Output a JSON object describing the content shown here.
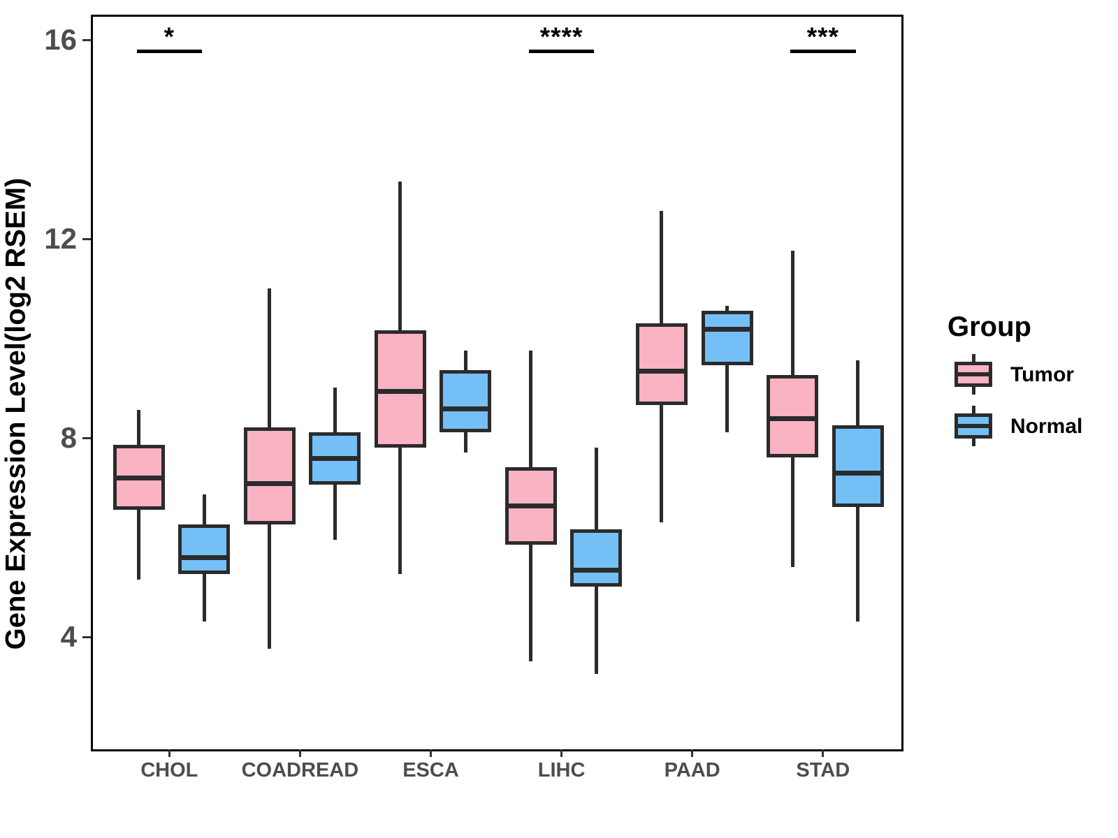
{
  "y_axis": {
    "title": "Gene Expression Level(log2 RSEM)",
    "tick_labels": [
      "16",
      "12",
      "8",
      "4"
    ],
    "tick_values": [
      16,
      12,
      8,
      4
    ]
  },
  "x_axis": {
    "tick_labels": [
      "CHOL",
      "COADREAD",
      "ESCA",
      "LIHC",
      "PAAD",
      "STAD"
    ]
  },
  "legend": {
    "title": "Group",
    "entries": [
      {
        "label": "Tumor",
        "color": "#FAB3C3"
      },
      {
        "label": "Normal",
        "color": "#75BFF7"
      }
    ]
  },
  "chart_data": {
    "type": "boxplot",
    "title": "",
    "xlabel": "",
    "ylabel": "Gene Expression Level(log2 RSEM)",
    "categories": [
      "CHOL",
      "COADREAD",
      "ESCA",
      "LIHC",
      "PAAD",
      "STAD"
    ],
    "yticks": [
      4,
      8,
      12,
      16
    ],
    "ylim": [
      1.8,
      16.5
    ],
    "grid": false,
    "legend_position": "right",
    "group_colors": {
      "Tumor": "#FAB3C3",
      "Normal": "#75BFF7"
    },
    "stroke_color": "#2b2b2b",
    "series": [
      {
        "name": "Tumor",
        "color": "#FAB3C3",
        "boxes": [
          {
            "category": "CHOL",
            "whisker_low": 5.2,
            "q1": 6.6,
            "median": 7.3,
            "q3": 7.9,
            "whisker_high": 8.6
          },
          {
            "category": "COADREAD",
            "whisker_low": 3.8,
            "q1": 6.3,
            "median": 7.2,
            "q3": 8.25,
            "whisker_high": 11.05
          },
          {
            "category": "ESCA",
            "whisker_low": 5.3,
            "q1": 7.85,
            "median": 9.05,
            "q3": 10.2,
            "whisker_high": 13.2
          },
          {
            "category": "LIHC",
            "whisker_low": 3.55,
            "q1": 5.9,
            "median": 6.75,
            "q3": 7.45,
            "whisker_high": 9.8
          },
          {
            "category": "PAAD",
            "whisker_low": 6.35,
            "q1": 8.7,
            "median": 9.45,
            "q3": 10.35,
            "whisker_high": 12.6
          },
          {
            "category": "STAD",
            "whisker_low": 5.45,
            "q1": 7.65,
            "median": 8.5,
            "q3": 9.3,
            "whisker_high": 11.8
          }
        ]
      },
      {
        "name": "Normal",
        "color": "#75BFF7",
        "boxes": [
          {
            "category": "CHOL",
            "whisker_low": 4.35,
            "q1": 5.3,
            "median": 5.7,
            "q3": 6.3,
            "whisker_high": 6.9
          },
          {
            "category": "COADREAD",
            "whisker_low": 6.0,
            "q1": 7.1,
            "median": 7.7,
            "q3": 8.15,
            "whisker_high": 9.05
          },
          {
            "category": "ESCA",
            "whisker_low": 7.75,
            "q1": 8.15,
            "median": 8.7,
            "q3": 9.4,
            "whisker_high": 9.8
          },
          {
            "category": "LIHC",
            "whisker_low": 3.3,
            "q1": 5.05,
            "median": 5.45,
            "q3": 6.2,
            "whisker_high": 7.85
          },
          {
            "category": "PAAD",
            "whisker_low": 8.15,
            "q1": 9.5,
            "median": 10.3,
            "q3": 10.6,
            "whisker_high": 10.7
          },
          {
            "category": "STAD",
            "whisker_low": 4.35,
            "q1": 6.65,
            "median": 7.4,
            "q3": 8.3,
            "whisker_high": 9.6
          }
        ]
      }
    ],
    "significance": [
      {
        "category": "CHOL",
        "label": "*"
      },
      {
        "category": "LIHC",
        "label": "****"
      },
      {
        "category": "STAD",
        "label": "***"
      }
    ]
  }
}
